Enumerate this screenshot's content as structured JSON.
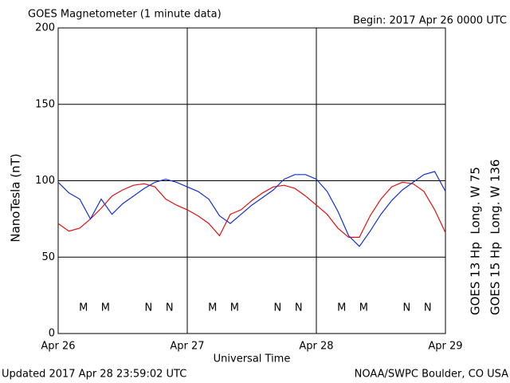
{
  "chart_data": {
    "type": "line",
    "title": "GOES Magnetometer (1 minute data)",
    "subtitle": "Begin:  2017 Apr 26 0000 UTC",
    "x_label": "Universal Time",
    "y_label": "NanoTesla (nT)",
    "footer_left": "Updated 2017 Apr 28 23:59:02 UTC",
    "footer_right": "NOAA/SWPC Boulder, CO USA",
    "x": [
      0,
      2,
      4,
      6,
      8,
      10,
      12,
      14,
      16,
      18,
      20,
      22,
      24,
      26,
      28,
      30,
      32,
      34,
      36,
      38,
      40,
      42,
      44,
      46,
      48,
      50,
      52,
      54,
      56,
      58,
      60,
      62,
      64,
      66,
      68,
      70,
      72
    ],
    "xlim": [
      0,
      72
    ],
    "xticks": [
      {
        "value": 0,
        "label": "Apr 26"
      },
      {
        "value": 24,
        "label": "Apr 27"
      },
      {
        "value": 48,
        "label": "Apr 28"
      },
      {
        "value": 72,
        "label": "Apr 29"
      }
    ],
    "ylim": [
      0,
      200
    ],
    "yticks": [
      0,
      50,
      100,
      150,
      200
    ],
    "grid": true,
    "legend": "right",
    "series": [
      {
        "name": "GOES 13 Hp  Long. W 75",
        "color": "#e01010",
        "values": [
          72,
          67,
          69,
          75,
          82,
          90,
          94,
          97,
          98,
          96,
          88,
          84,
          81,
          77,
          72,
          64,
          78,
          81,
          87,
          92,
          96,
          97,
          95,
          90,
          84,
          78,
          69,
          63,
          63,
          77,
          88,
          96,
          99,
          98,
          93,
          81,
          66
        ]
      },
      {
        "name": "GOES 15 Hp  Long. W 136",
        "color": "#1030d0",
        "values": [
          99,
          92,
          88,
          75,
          88,
          78,
          85,
          90,
          95,
          99,
          101,
          99,
          96,
          93,
          88,
          77,
          72,
          78,
          84,
          89,
          94,
          101,
          104,
          104,
          101,
          93,
          80,
          64,
          57,
          67,
          78,
          87,
          94,
          99,
          104,
          106,
          93
        ]
      }
    ],
    "annotations": [
      {
        "text": "M",
        "x": 4.7,
        "color": "#e01010"
      },
      {
        "text": "M",
        "x": 8.8,
        "color": "#1030d0"
      },
      {
        "text": "N",
        "x": 16.8,
        "color": "#e01010"
      },
      {
        "text": "N",
        "x": 20.7,
        "color": "#1030d0"
      },
      {
        "text": "M",
        "x": 28.7,
        "color": "#e01010"
      },
      {
        "text": "M",
        "x": 32.8,
        "color": "#1030d0"
      },
      {
        "text": "N",
        "x": 40.8,
        "color": "#e01010"
      },
      {
        "text": "N",
        "x": 44.7,
        "color": "#1030d0"
      },
      {
        "text": "M",
        "x": 52.7,
        "color": "#e01010"
      },
      {
        "text": "M",
        "x": 56.8,
        "color": "#1030d0"
      },
      {
        "text": "N",
        "x": 64.8,
        "color": "#e01010"
      },
      {
        "text": "N",
        "x": 68.7,
        "color": "#1030d0"
      }
    ]
  }
}
